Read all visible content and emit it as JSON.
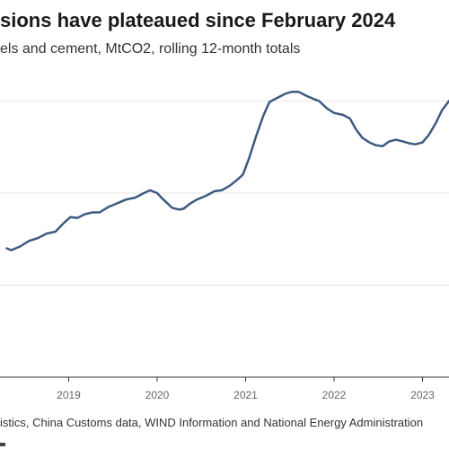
{
  "title": "sions have plateaued since February 2024",
  "subtitle": "els and cement, MtCO2, rolling 12-month totals",
  "source": "istics, China Customs data, WIND Information and National Energy Administration",
  "colors": {
    "line": "#3d5a80",
    "grid": "#e6e6e6",
    "axis": "#333333"
  },
  "chart_data": {
    "type": "line",
    "title": "sions have plateaued since February 2024",
    "subtitle": "els and cement, MtCO2, rolling 12-month totals",
    "x_tick_labels": [
      "2019",
      "2020",
      "2021",
      "2022",
      "2023"
    ],
    "x_ticks": [
      2019,
      2020,
      2021,
      2022,
      2023
    ],
    "xlim": [
      2018.3,
      2023.3
    ],
    "ylim": [
      0,
      4
    ],
    "y_gridlines": [
      1,
      2,
      3
    ],
    "grid": true,
    "series": [
      {
        "x": [
          2018.3,
          2018.35,
          2018.45,
          2018.55,
          2018.65,
          2018.75,
          2018.85,
          2018.95,
          2019.02,
          2019.1,
          2019.18,
          2019.27,
          2019.35,
          2019.45,
          2019.55,
          2019.65,
          2019.75,
          2019.85,
          2019.92,
          2020.0,
          2020.07,
          2020.17,
          2020.25,
          2020.3,
          2020.38,
          2020.45,
          2020.55,
          2020.65,
          2020.73,
          2020.82,
          2020.9,
          2020.97,
          2021.04,
          2021.12,
          2021.2,
          2021.27,
          2021.35,
          2021.45,
          2021.52,
          2021.6,
          2021.68,
          2021.75,
          2021.83,
          2021.92,
          2022.0,
          2022.1,
          2022.18,
          2022.25,
          2022.32,
          2022.4,
          2022.47,
          2022.55,
          2022.62,
          2022.7,
          2022.78,
          2022.85,
          2022.92,
          2023.0,
          2023.07,
          2023.15,
          2023.22,
          2023.3
        ],
        "values": [
          1.4,
          1.38,
          1.42,
          1.48,
          1.51,
          1.56,
          1.58,
          1.68,
          1.74,
          1.73,
          1.77,
          1.79,
          1.79,
          1.85,
          1.89,
          1.93,
          1.95,
          2.0,
          2.03,
          2.0,
          1.93,
          1.84,
          1.82,
          1.83,
          1.89,
          1.93,
          1.97,
          2.02,
          2.03,
          2.08,
          2.14,
          2.2,
          2.38,
          2.62,
          2.84,
          2.99,
          3.03,
          3.08,
          3.1,
          3.1,
          3.06,
          3.03,
          3.0,
          2.92,
          2.87,
          2.85,
          2.81,
          2.69,
          2.6,
          2.55,
          2.52,
          2.51,
          2.56,
          2.58,
          2.56,
          2.54,
          2.53,
          2.55,
          2.63,
          2.76,
          2.9,
          3.0
        ]
      }
    ]
  }
}
